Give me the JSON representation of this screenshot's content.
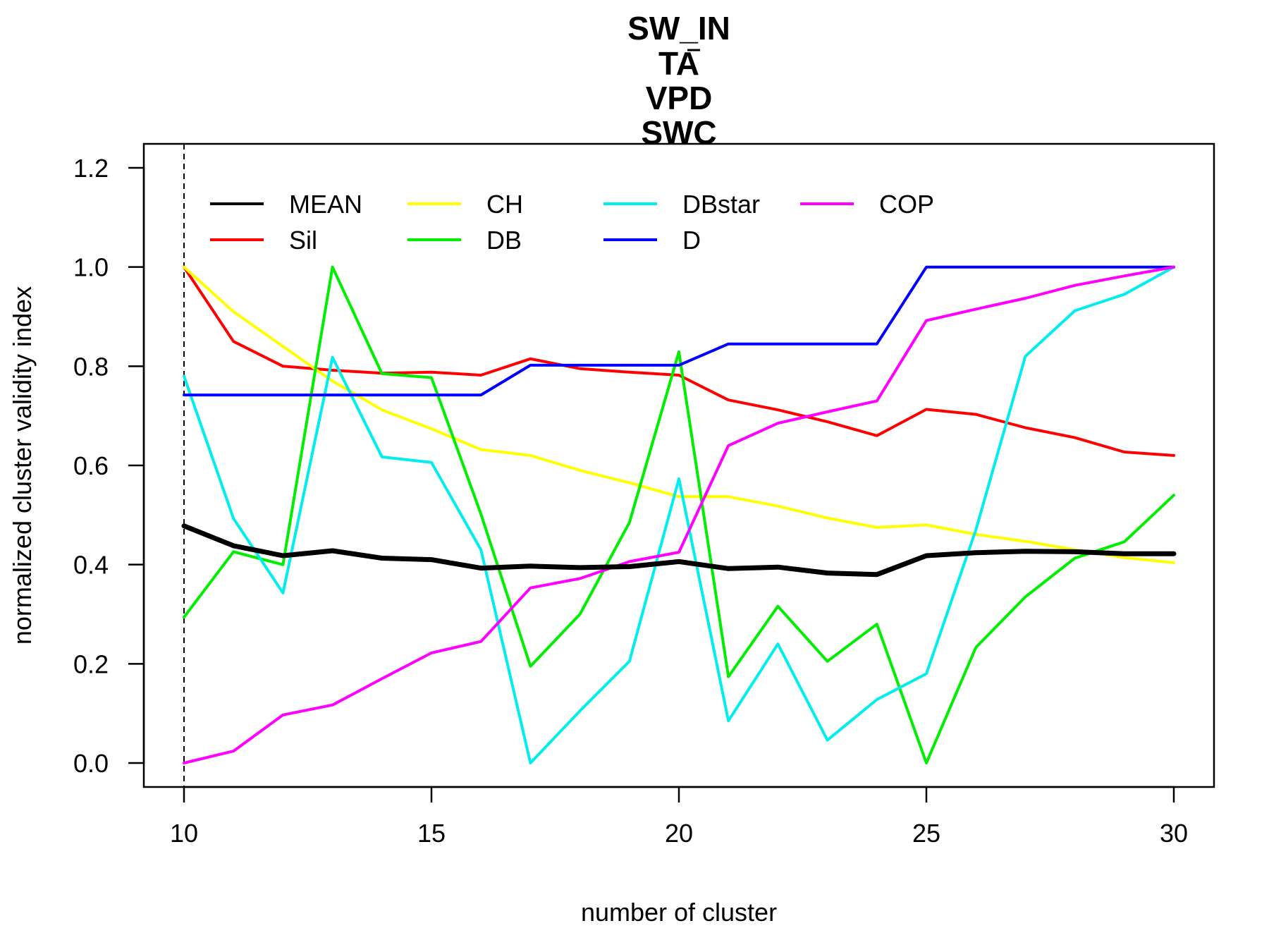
{
  "chart_data": {
    "type": "line",
    "title_lines": [
      "SW_IN",
      "TA",
      "VPD",
      "SWC"
    ],
    "xlabel": "number of cluster",
    "ylabel": "normalized cluster validity index",
    "xlim": [
      10,
      30
    ],
    "ylim": [
      0,
      1.2
    ],
    "x_ticks": [
      10,
      15,
      20,
      25,
      30
    ],
    "y_ticks": [
      "0.0",
      "0.2",
      "0.4",
      "0.6",
      "0.8",
      "1.0",
      "1.2"
    ],
    "grid": false,
    "legend_position": "top-left",
    "reference_line": {
      "x": 10,
      "style": "dashed"
    },
    "x": [
      10,
      11,
      12,
      13,
      14,
      15,
      16,
      17,
      18,
      19,
      20,
      21,
      22,
      23,
      24,
      25,
      26,
      27,
      28,
      29,
      30
    ],
    "series": [
      {
        "name": "MEAN",
        "color": "#000000",
        "bold": true,
        "values": [
          0.478,
          0.438,
          0.418,
          0.428,
          0.413,
          0.41,
          0.393,
          0.397,
          0.394,
          0.396,
          0.406,
          0.392,
          0.395,
          0.383,
          0.38,
          0.418,
          0.424,
          0.427,
          0.426,
          0.422,
          0.422
        ]
      },
      {
        "name": "Sil",
        "color": "#ff0000",
        "values": [
          1.0,
          0.85,
          0.8,
          0.792,
          0.786,
          0.788,
          0.782,
          0.815,
          0.795,
          0.788,
          0.782,
          0.732,
          0.712,
          0.688,
          0.66,
          0.713,
          0.703,
          0.676,
          0.656,
          0.627,
          0.62
        ]
      },
      {
        "name": "CH",
        "color": "#ffff00",
        "values": [
          1.0,
          0.91,
          0.84,
          0.77,
          0.712,
          0.674,
          0.632,
          0.62,
          0.59,
          0.565,
          0.537,
          0.537,
          0.518,
          0.494,
          0.475,
          0.48,
          0.461,
          0.447,
          0.43,
          0.414,
          0.404
        ]
      },
      {
        "name": "DB",
        "color": "#00ee00",
        "values": [
          0.294,
          0.426,
          0.4,
          1.0,
          0.785,
          0.777,
          0.502,
          0.195,
          0.3,
          0.485,
          0.829,
          0.174,
          0.316,
          0.205,
          0.28,
          0.0,
          0.233,
          0.335,
          0.413,
          0.446,
          0.54
        ]
      },
      {
        "name": "DBstar",
        "color": "#00eeee",
        "values": [
          0.78,
          0.493,
          0.343,
          0.818,
          0.617,
          0.606,
          0.43,
          0.0,
          0.105,
          0.205,
          0.573,
          0.085,
          0.24,
          0.046,
          0.128,
          0.18,
          0.47,
          0.82,
          0.912,
          0.945,
          1.0
        ]
      },
      {
        "name": "D",
        "color": "#0000ff",
        "values": [
          0.742,
          0.742,
          0.742,
          0.742,
          0.742,
          0.742,
          0.742,
          0.802,
          0.802,
          0.802,
          0.802,
          0.845,
          0.845,
          0.845,
          0.845,
          1.0,
          1.0,
          1.0,
          1.0,
          1.0,
          1.0
        ]
      },
      {
        "name": "COP",
        "color": "#ff00ff",
        "values": [
          0.0,
          0.024,
          0.097,
          0.117,
          0.17,
          0.222,
          0.245,
          0.353,
          0.372,
          0.406,
          0.425,
          0.64,
          0.685,
          0.708,
          0.73,
          0.892,
          0.915,
          0.937,
          0.963,
          0.982,
          1.0
        ]
      }
    ]
  }
}
